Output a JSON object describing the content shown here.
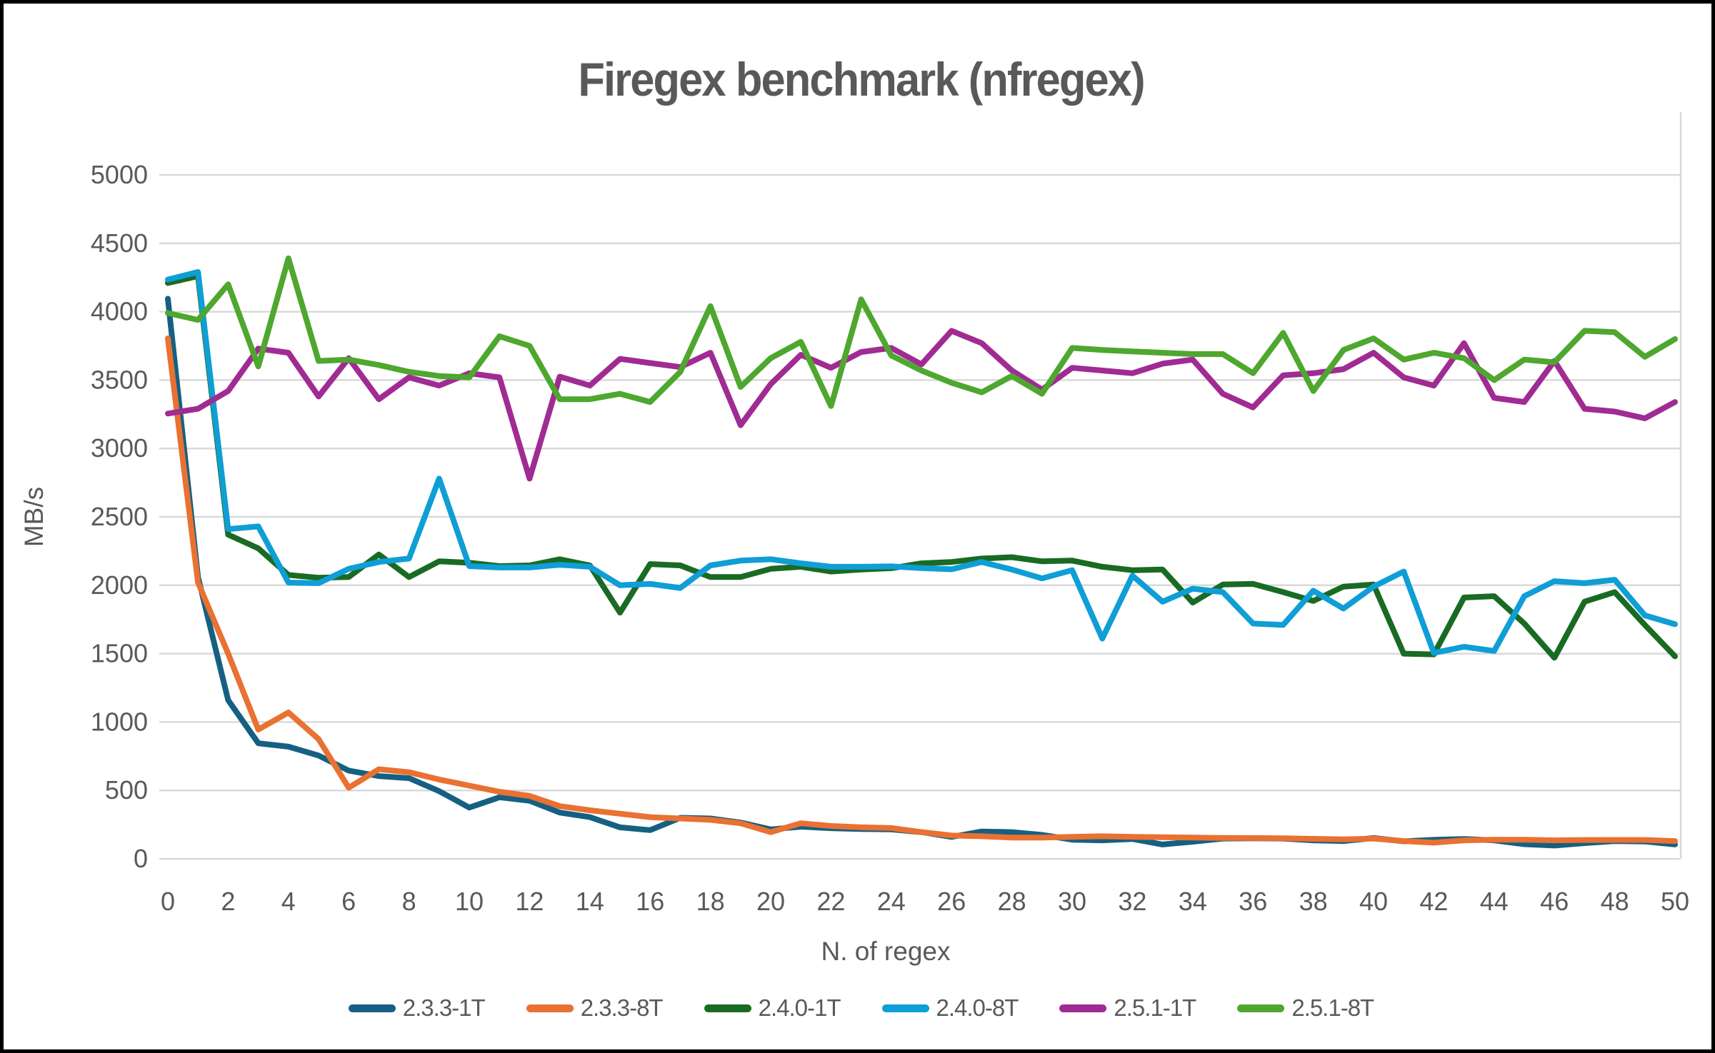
{
  "title": "Firegex benchmark (nfregex)",
  "chart_data": {
    "type": "line",
    "title": "Firegex benchmark (nfregex)",
    "xlabel": "N. of regex",
    "ylabel": "MB/s",
    "xlim": [
      0,
      50
    ],
    "x_tick_step": 2,
    "ylim": [
      0,
      5000
    ],
    "y_tick_step": 500,
    "grid": "horizontal",
    "legend_position": "bottom",
    "background_color": "#FFFFFF",
    "gridline_color": "#D9D9D9",
    "axis_text_color": "#595959",
    "title_color": "#595959",
    "line_width": 8,
    "series": [
      {
        "name": "2.3.3-1T",
        "color": "#156082",
        "values": [
          4095,
          2060,
          1160,
          845,
          820,
          755,
          645,
          605,
          590,
          495,
          375,
          450,
          425,
          338,
          305,
          230,
          210,
          300,
          295,
          265,
          215,
          235,
          224,
          218,
          215,
          195,
          160,
          200,
          195,
          175,
          140,
          135,
          145,
          105,
          125,
          148,
          150,
          148,
          135,
          130,
          152,
          128,
          139,
          145,
          135,
          107,
          97,
          115,
          130,
          127,
          105
        ]
      },
      {
        "name": "2.3.3-8T",
        "color": "#E97132",
        "values": [
          3805,
          2020,
          1500,
          945,
          1070,
          875,
          520,
          655,
          633,
          580,
          535,
          490,
          460,
          385,
          355,
          330,
          305,
          295,
          285,
          260,
          195,
          260,
          240,
          230,
          225,
          195,
          170,
          165,
          155,
          155,
          160,
          165,
          160,
          158,
          155,
          153,
          152,
          150,
          146,
          142,
          148,
          130,
          118,
          135,
          140,
          140,
          135,
          138,
          138,
          138,
          130
        ]
      },
      {
        "name": "2.4.0-1T",
        "color": "#196B24",
        "values": [
          4210,
          4260,
          2370,
          2270,
          2075,
          2055,
          2060,
          2225,
          2060,
          2175,
          2165,
          2140,
          2145,
          2190,
          2145,
          1800,
          2155,
          2145,
          2060,
          2060,
          2120,
          2135,
          2100,
          2115,
          2125,
          2160,
          2170,
          2195,
          2205,
          2175,
          2180,
          2135,
          2110,
          2115,
          1873,
          2005,
          2010,
          1950,
          1885,
          1990,
          2005,
          1500,
          1495,
          1910,
          1920,
          1720,
          1470,
          1880,
          1950,
          1710,
          1480
        ]
      },
      {
        "name": "2.4.0-8T",
        "color": "#0F9ED5",
        "values": [
          4235,
          4290,
          2410,
          2430,
          2020,
          2015,
          2120,
          2170,
          2195,
          2780,
          2140,
          2130,
          2130,
          2150,
          2135,
          2000,
          2010,
          1980,
          2145,
          2180,
          2190,
          2160,
          2135,
          2135,
          2138,
          2126,
          2117,
          2170,
          2115,
          2050,
          2110,
          1610,
          2070,
          1880,
          1975,
          1950,
          1720,
          1710,
          1960,
          1830,
          1990,
          2100,
          1505,
          1550,
          1520,
          1920,
          2030,
          2015,
          2040,
          1780,
          1715
        ]
      },
      {
        "name": "2.5.1-1T",
        "color": "#A02B93",
        "values": [
          3255,
          3290,
          3420,
          3730,
          3700,
          3380,
          3660,
          3360,
          3520,
          3460,
          3550,
          3520,
          2780,
          3525,
          3460,
          3655,
          3625,
          3595,
          3700,
          3170,
          3470,
          3685,
          3590,
          3705,
          3735,
          3615,
          3860,
          3770,
          3570,
          3430,
          3590,
          3570,
          3550,
          3620,
          3650,
          3400,
          3300,
          3535,
          3550,
          3580,
          3700,
          3520,
          3460,
          3770,
          3370,
          3340,
          3640,
          3290,
          3270,
          3220,
          3340
        ]
      },
      {
        "name": "2.5.1-8T",
        "color": "#4EA72E",
        "values": [
          3990,
          3940,
          4200,
          3600,
          4390,
          3640,
          3650,
          3610,
          3560,
          3530,
          3520,
          3820,
          3750,
          3360,
          3360,
          3400,
          3340,
          3560,
          4040,
          3450,
          3660,
          3780,
          3310,
          4090,
          3680,
          3570,
          3480,
          3410,
          3530,
          3400,
          3735,
          3720,
          3710,
          3700,
          3690,
          3690,
          3550,
          3845,
          3420,
          3720,
          3805,
          3650,
          3700,
          3660,
          3500,
          3650,
          3630,
          3860,
          3850,
          3670,
          3800
        ]
      }
    ]
  }
}
